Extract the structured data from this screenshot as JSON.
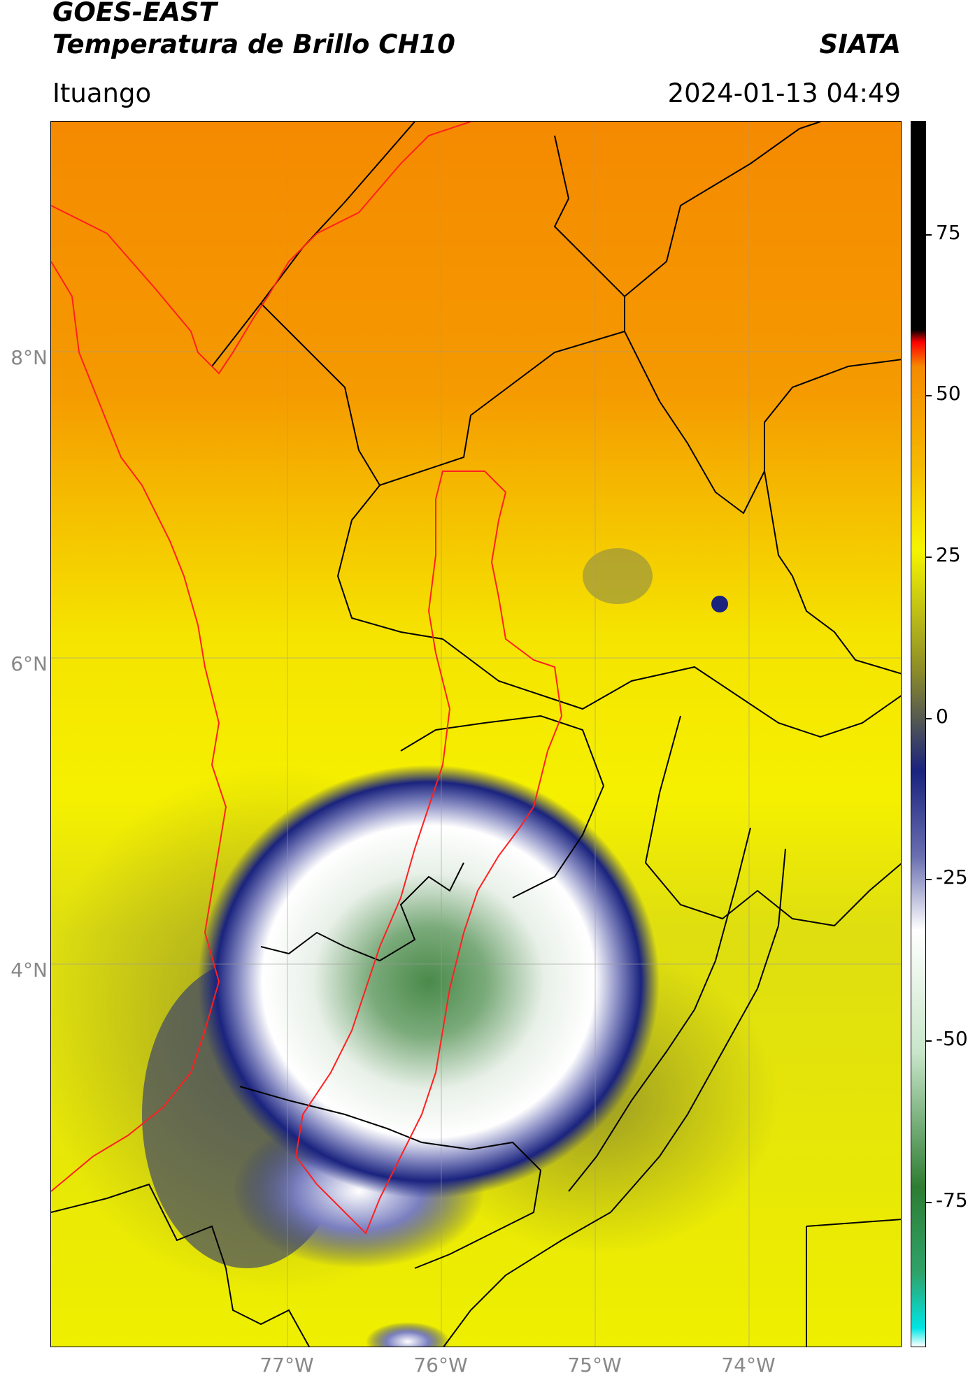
{
  "header": {
    "satellite": "GOES-EAST",
    "product": "Temperatura de Brillo CH10",
    "organization": "SIATA",
    "region": "Ituango",
    "datetime": "2024-01-13 04:49"
  },
  "map": {
    "lat_labels": [
      "8°N",
      "6°N",
      "4°N"
    ],
    "lon_labels": [
      "77°W",
      "76°W",
      "75°W",
      "74°W"
    ],
    "grid": true,
    "border_colors": {
      "departments": "#000000",
      "basin_and_coast": "#ff0000"
    }
  },
  "colorbar": {
    "ticks": [
      "75",
      "50",
      "25",
      "0",
      "-25",
      "-50",
      "-75"
    ],
    "stops": [
      "#ffffff",
      "#00e5e5",
      "#2fa36a",
      "#2e7d32",
      "#c8e6c9",
      "#ffffff",
      "#6a6fb0",
      "#1a237e",
      "#8a8a2a",
      "#f5f500",
      "#f5b800",
      "#f58a00",
      "#ff0000",
      "#000000"
    ]
  }
}
